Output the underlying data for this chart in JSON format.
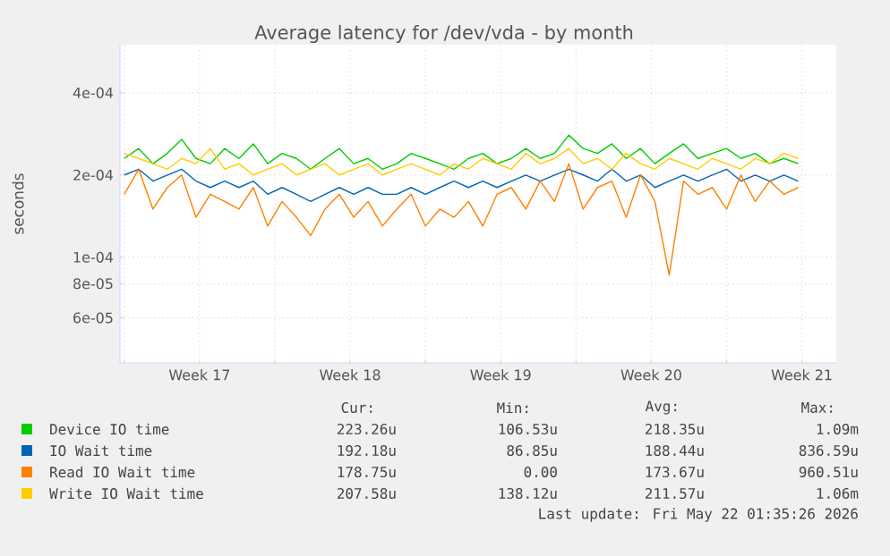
{
  "chart_data": {
    "type": "line",
    "title": "Average latency for /dev/vda - by month",
    "ylabel": "seconds",
    "log": "y",
    "grid": true,
    "legend": "bottom",
    "xlim": [
      "2026-04-19T19:12",
      "2026-05-23T02:24"
    ],
    "xticks": [
      {
        "value": "2026-04-20",
        "label": null
      },
      {
        "value": "2026-04-23T12:00",
        "label": "Week 17"
      },
      {
        "value": "2026-04-27",
        "label": null
      },
      {
        "value": "2026-04-30T12:00",
        "label": "Week 18"
      },
      {
        "value": "2026-05-04",
        "label": null
      },
      {
        "value": "2026-05-07T12:00",
        "label": "Week 19"
      },
      {
        "value": "2026-05-11",
        "label": null
      },
      {
        "value": "2026-05-14T12:00",
        "label": "Week 20"
      },
      {
        "value": "2026-05-18",
        "label": null
      },
      {
        "value": "2026-05-21T12:00",
        "label": "Week 21"
      }
    ],
    "ylim": [
      4.1e-05,
      0.0006
    ],
    "yticks": [
      {
        "value": 6e-05,
        "label": "6e-05"
      },
      {
        "value": 8e-05,
        "label": "8e-05"
      },
      {
        "value": 0.0001,
        "label": "1e-04"
      },
      {
        "value": 0.0002,
        "label": "2e-04"
      },
      {
        "value": 0.0004,
        "label": "4e-04"
      }
    ],
    "x": [
      "2026-04-20T00:00",
      "2026-04-20T16:00",
      "2026-04-21T08:00",
      "2026-04-22T00:00",
      "2026-04-22T16:00",
      "2026-04-23T08:00",
      "2026-04-24T00:00",
      "2026-04-24T16:00",
      "2026-04-25T08:00",
      "2026-04-26T00:00",
      "2026-04-26T16:00",
      "2026-04-27T08:00",
      "2026-04-28T00:00",
      "2026-04-28T16:00",
      "2026-04-29T08:00",
      "2026-04-30T00:00",
      "2026-04-30T16:00",
      "2026-05-01T08:00",
      "2026-05-02T00:00",
      "2026-05-02T16:00",
      "2026-05-03T08:00",
      "2026-05-04T00:00",
      "2026-05-04T16:00",
      "2026-05-05T08:00",
      "2026-05-06T00:00",
      "2026-05-06T16:00",
      "2026-05-07T08:00",
      "2026-05-08T00:00",
      "2026-05-08T16:00",
      "2026-05-09T08:00",
      "2026-05-10T00:00",
      "2026-05-10T16:00",
      "2026-05-11T08:00",
      "2026-05-12T00:00",
      "2026-05-12T16:00",
      "2026-05-13T08:00",
      "2026-05-14T00:00",
      "2026-05-14T16:00",
      "2026-05-15T08:00",
      "2026-05-16T00:00",
      "2026-05-16T16:00",
      "2026-05-17T08:00",
      "2026-05-18T00:00",
      "2026-05-18T16:00",
      "2026-05-19T08:00",
      "2026-05-20T00:00",
      "2026-05-20T16:00",
      "2026-05-21T08:00"
    ],
    "series": [
      {
        "name": "Device IO time",
        "color": "#00cc00",
        "values": [
          0.00023,
          0.00025,
          0.00022,
          0.00024,
          0.00027,
          0.00023,
          0.00022,
          0.00025,
          0.00023,
          0.00026,
          0.00022,
          0.00024,
          0.00023,
          0.00021,
          0.00023,
          0.00025,
          0.00022,
          0.00023,
          0.00021,
          0.00022,
          0.00024,
          0.00023,
          0.00022,
          0.00021,
          0.00023,
          0.00024,
          0.00022,
          0.00023,
          0.00025,
          0.00023,
          0.00024,
          0.00028,
          0.00025,
          0.00024,
          0.00026,
          0.00023,
          0.00025,
          0.00022,
          0.00024,
          0.00026,
          0.00023,
          0.00024,
          0.00025,
          0.00023,
          0.00024,
          0.00022,
          0.00023,
          0.00022
        ]
      },
      {
        "name": "IO Wait time",
        "color": "#0066b3",
        "values": [
          0.0002,
          0.00021,
          0.00019,
          0.0002,
          0.00021,
          0.00019,
          0.00018,
          0.00019,
          0.00018,
          0.00019,
          0.00017,
          0.00018,
          0.00017,
          0.00016,
          0.00017,
          0.00018,
          0.00017,
          0.00018,
          0.00017,
          0.00017,
          0.00018,
          0.00017,
          0.00018,
          0.00019,
          0.00018,
          0.00019,
          0.00018,
          0.00019,
          0.0002,
          0.00019,
          0.0002,
          0.00021,
          0.0002,
          0.00019,
          0.00021,
          0.00019,
          0.0002,
          0.00018,
          0.00019,
          0.0002,
          0.00019,
          0.0002,
          0.00021,
          0.00019,
          0.0002,
          0.00019,
          0.0002,
          0.00019
        ]
      },
      {
        "name": "Read IO Wait time",
        "color": "#ff8000",
        "values": [
          0.00017,
          0.00021,
          0.00015,
          0.00018,
          0.0002,
          0.00014,
          0.00017,
          0.00016,
          0.00015,
          0.00018,
          0.00013,
          0.00016,
          0.00014,
          0.00012,
          0.00015,
          0.00017,
          0.00014,
          0.00016,
          0.00013,
          0.00015,
          0.00017,
          0.00013,
          0.00015,
          0.00014,
          0.00016,
          0.00013,
          0.00017,
          0.00018,
          0.00015,
          0.00019,
          0.00016,
          0.00022,
          0.00015,
          0.00018,
          0.00019,
          0.00014,
          0.0002,
          0.00016,
          8.6e-05,
          0.00019,
          0.00017,
          0.00018,
          0.00015,
          0.0002,
          0.00016,
          0.00019,
          0.00017,
          0.00018
        ]
      },
      {
        "name": "Write IO Wait time",
        "color": "#ffcc00",
        "values": [
          0.00024,
          0.00023,
          0.00022,
          0.00021,
          0.00023,
          0.00022,
          0.00025,
          0.00021,
          0.00022,
          0.0002,
          0.00021,
          0.00022,
          0.0002,
          0.00021,
          0.00022,
          0.0002,
          0.00021,
          0.00022,
          0.0002,
          0.00021,
          0.00022,
          0.00021,
          0.0002,
          0.00022,
          0.00021,
          0.00023,
          0.00022,
          0.00021,
          0.00024,
          0.00022,
          0.00023,
          0.00025,
          0.00022,
          0.00023,
          0.00021,
          0.00024,
          0.00022,
          0.00021,
          0.00023,
          0.00022,
          0.00021,
          0.00023,
          0.00022,
          0.00021,
          0.00023,
          0.00022,
          0.00024,
          0.00023
        ]
      }
    ],
    "annotations": [
      "Cur:",
      "Min:",
      "Avg:",
      "Max:",
      "223.26u",
      "106.53u",
      "218.35u",
      "1.09m",
      "192.18u",
      "86.85u",
      "188.44u",
      "836.59u",
      "178.75u",
      "0.00",
      "173.67u",
      "960.51u",
      "207.58u",
      "138.12u",
      "211.57u",
      "1.06m",
      "Last update: Fri May 22 01:35:26 2026"
    ]
  }
}
